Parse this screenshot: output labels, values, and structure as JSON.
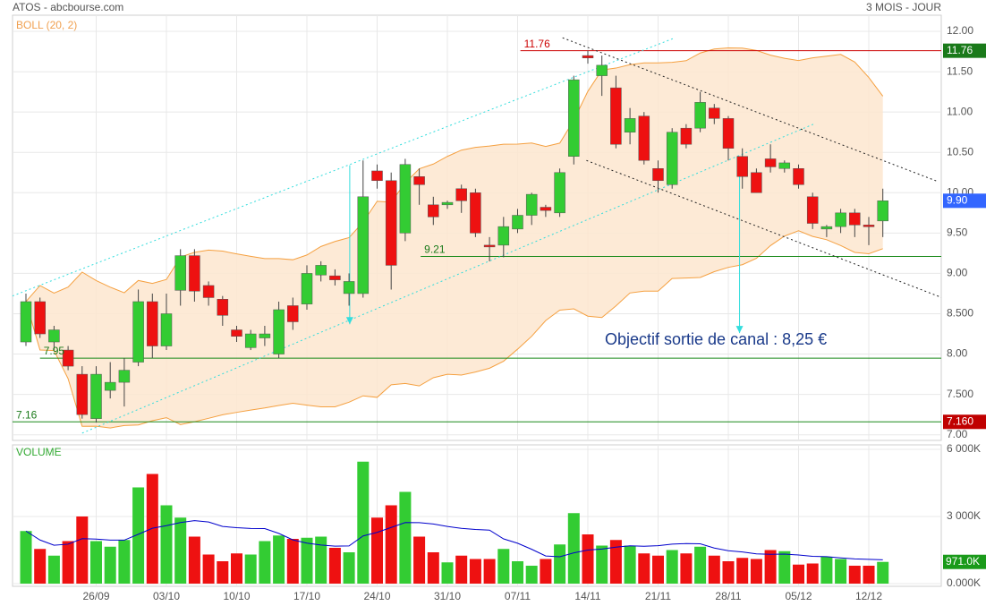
{
  "chart_data": {
    "type": "candlestick",
    "title": "ATOS - abcbourse.com",
    "subtitle": "3 MOIS - JOUR",
    "indicator_label": "BOLL (20, 2)",
    "bollinger": {
      "period": 20,
      "width": 2
    },
    "annotation": "Objectif sortie de canal : 8,25 €",
    "categories": [
      null,
      null,
      null,
      null,
      null,
      "26/09",
      null,
      null,
      null,
      null,
      "03/10",
      null,
      null,
      null,
      null,
      "10/10",
      null,
      null,
      null,
      null,
      "17/10",
      null,
      null,
      null,
      null,
      "24/10",
      null,
      null,
      null,
      null,
      "31/10",
      null,
      null,
      null,
      null,
      "07/11",
      null,
      null,
      null,
      null,
      "14/11",
      null,
      null,
      null,
      null,
      "21/11",
      null,
      null,
      null,
      null,
      "28/11",
      null,
      null,
      null,
      null,
      "05/12",
      null,
      null,
      null,
      null,
      "12/12",
      null
    ],
    "open": [
      8.15,
      8.65,
      8.15,
      8.05,
      7.75,
      7.2,
      7.55,
      7.65,
      7.9,
      8.65,
      8.1,
      8.79,
      9.22,
      8.85,
      8.68,
      8.3,
      8.08,
      8.2,
      8.0,
      8.6,
      8.62,
      8.98,
      8.97,
      8.75,
      8.75,
      10.27,
      10.15,
      9.5,
      10.2,
      9.85,
      9.85,
      10.05,
      10.0,
      9.35,
      9.35,
      9.55,
      9.72,
      9.82,
      9.75,
      10.45,
      11.7,
      11.45,
      11.3,
      10.75,
      10.95,
      10.3,
      10.1,
      10.8,
      10.8,
      11.05,
      10.92,
      10.45,
      10.25,
      10.42,
      10.3,
      10.3,
      9.95,
      9.55,
      9.58,
      9.75,
      9.6,
      9.65
    ],
    "high": [
      8.75,
      8.7,
      8.35,
      8.1,
      7.85,
      7.85,
      7.9,
      7.95,
      8.8,
      8.75,
      8.75,
      9.3,
      9.3,
      8.9,
      8.72,
      8.35,
      8.3,
      8.35,
      8.65,
      8.7,
      9.1,
      9.15,
      9.05,
      9.0,
      10.4,
      10.35,
      10.25,
      10.42,
      10.3,
      9.95,
      9.9,
      10.1,
      10.05,
      9.45,
      9.7,
      9.8,
      10.0,
      9.85,
      10.3,
      11.45,
      11.76,
      11.7,
      11.45,
      11.05,
      11.0,
      10.4,
      10.8,
      10.85,
      11.25,
      11.1,
      10.95,
      10.55,
      10.3,
      10.6,
      10.4,
      10.35,
      10.0,
      9.6,
      9.8,
      9.8,
      9.7,
      10.05
    ],
    "low": [
      8.1,
      8.2,
      8.05,
      7.8,
      7.2,
      7.15,
      7.45,
      7.35,
      7.85,
      7.95,
      8.05,
      8.6,
      8.65,
      8.6,
      8.35,
      8.15,
      8.05,
      8.1,
      7.95,
      8.3,
      8.55,
      8.9,
      8.85,
      8.6,
      8.7,
      10.05,
      8.8,
      9.4,
      9.85,
      9.6,
      9.8,
      9.75,
      9.45,
      9.15,
      9.2,
      9.5,
      9.6,
      9.7,
      9.7,
      10.35,
      11.6,
      11.2,
      10.55,
      10.6,
      10.35,
      10.0,
      10.05,
      10.55,
      10.75,
      10.85,
      10.4,
      10.05,
      10.0,
      10.25,
      10.25,
      10.05,
      9.55,
      9.45,
      9.5,
      9.45,
      9.35,
      9.45
    ],
    "close": [
      8.65,
      8.25,
      8.3,
      7.85,
      7.25,
      7.75,
      7.65,
      7.8,
      8.65,
      8.1,
      8.5,
      9.22,
      8.78,
      8.7,
      8.48,
      8.22,
      8.25,
      8.25,
      8.55,
      8.4,
      9.0,
      9.1,
      8.92,
      8.9,
      9.95,
      10.15,
      9.1,
      10.35,
      10.1,
      9.7,
      9.88,
      9.9,
      9.5,
      9.33,
      9.58,
      9.72,
      9.98,
      9.78,
      10.25,
      11.4,
      11.67,
      11.58,
      10.6,
      10.92,
      10.4,
      10.15,
      10.75,
      10.6,
      11.12,
      10.92,
      10.55,
      10.2,
      10.0,
      10.32,
      10.37,
      10.1,
      9.62,
      9.58,
      9.75,
      9.6,
      9.58,
      9.9
    ],
    "up_color": "#33cc33",
    "down_color": "#ee1111",
    "band_color": "#f5a040",
    "band_fill": "#fde6cf",
    "ylim": [
      6.93,
      12.2
    ],
    "yticks": [
      {
        "value": 7,
        "label": "7.00"
      },
      {
        "value": 7.5,
        "label": "7.500"
      },
      {
        "value": 8,
        "label": "8.00"
      },
      {
        "value": 8.5,
        "label": "8.500"
      },
      {
        "value": 9,
        "label": "9.00"
      },
      {
        "value": 9.5,
        "label": "9.50"
      },
      {
        "value": 10,
        "label": "10.00"
      },
      {
        "value": 10.5,
        "label": "10.50"
      },
      {
        "value": 11,
        "label": "11.00"
      },
      {
        "value": 11.5,
        "label": "11.50"
      },
      {
        "value": 12,
        "label": "12.00"
      }
    ],
    "grid": true,
    "levels": [
      {
        "value": 11.76,
        "label": "11.76",
        "from": 35.2,
        "color": "#cc0000",
        "label_color": "#cc0000",
        "badge": "11.76",
        "badge_color": "#1a7a1a"
      },
      {
        "value": 9.21,
        "label": "9.21",
        "from": 28.1,
        "color": "#1a8a1a",
        "label_color": "#1a7a1a"
      },
      {
        "value": 7.95,
        "label": "7.95",
        "from": 1,
        "color": "#1a8a1a",
        "label_color": "#1a7a1a"
      },
      {
        "value": 7.16,
        "label": "7.16",
        "from": -1,
        "color": "#1a8a1a",
        "label_color": "#1a7a1a",
        "badge": "7.160",
        "badge_color": "#c00000"
      }
    ],
    "last_price": {
      "value": 9.9,
      "label": "9.90",
      "color": "#3366ff"
    },
    "trendlines": [
      {
        "from": [
          4.0,
          7.02
        ],
        "to": [
          56.2,
          10.86
        ],
        "color": "#33dddd"
      },
      {
        "from": [
          -0.96,
          8.72
        ],
        "to": [
          46.2,
          11.92
        ],
        "color": "#33dddd"
      },
      {
        "from": [
          38.2,
          11.92
        ],
        "to": [
          64.9,
          10.14
        ],
        "color": "#222222"
      },
      {
        "from": [
          39.9,
          10.4
        ],
        "to": [
          65.2,
          8.7
        ],
        "color": "#222222"
      }
    ],
    "arrows": [
      {
        "at": 23.05,
        "from": 10.34,
        "to": 8.37,
        "color": "#33dddd"
      },
      {
        "at": 50.8,
        "from": 10.34,
        "to": 8.26,
        "color": "#33dddd"
      }
    ],
    "volume": {
      "label": "VOLUME",
      "values": [
        2350,
        1550,
        1250,
        1900,
        3000,
        1900,
        1650,
        1950,
        4300,
        4900,
        3500,
        2950,
        2100,
        1300,
        1000,
        1350,
        1300,
        1900,
        2150,
        2000,
        2050,
        2100,
        1600,
        1400,
        5450,
        2950,
        3500,
        4100,
        2100,
        1400,
        950,
        1250,
        1100,
        1100,
        1550,
        1000,
        800,
        1100,
        1750,
        3150,
        2200,
        1700,
        1950,
        1700,
        1350,
        1250,
        1500,
        1350,
        1650,
        1250,
        1000,
        1150,
        1100,
        1500,
        1450,
        850,
        900,
        1200,
        1100,
        800,
        800,
        971
      ],
      "ylim": [
        0,
        6080
      ],
      "yticks": [
        {
          "value": 0,
          "label": "0.000K"
        },
        {
          "value": 3000,
          "label": "3 000K"
        },
        {
          "value": 6000,
          "label": "6 000K"
        }
      ],
      "ma_color": "#0000cc",
      "badge": {
        "value": 971,
        "label": "971.0K",
        "color": "#1a9a1a"
      }
    }
  }
}
